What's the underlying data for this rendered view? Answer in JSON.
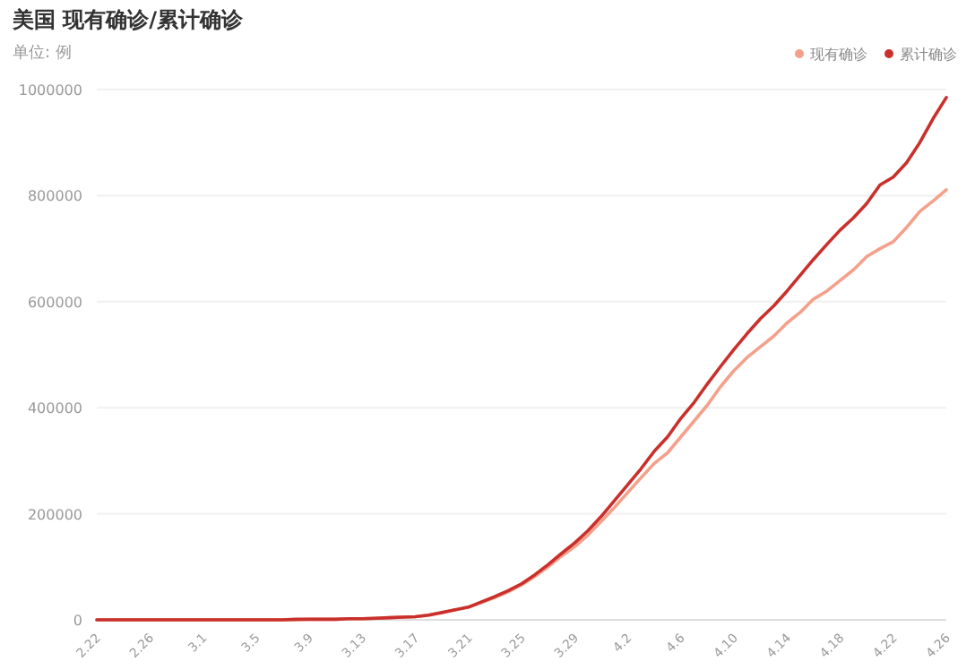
{
  "chart_data": {
    "type": "line",
    "title": "美国 现有确诊/累计确诊",
    "subtitle": "单位: 例",
    "categories": [
      "2.22",
      null,
      null,
      null,
      "2.26",
      null,
      null,
      null,
      "3.1",
      null,
      null,
      null,
      "3.5",
      null,
      null,
      null,
      "3.9",
      null,
      null,
      null,
      "3.13",
      null,
      null,
      null,
      "3.17",
      null,
      null,
      null,
      "3.21",
      null,
      null,
      null,
      "3.25",
      null,
      null,
      null,
      "3.29",
      null,
      null,
      null,
      "4.2",
      null,
      null,
      null,
      "4.6",
      null,
      null,
      null,
      "4.10",
      null,
      null,
      null,
      "4.14",
      null,
      null,
      null,
      "4.18",
      null,
      null,
      null,
      "4.22",
      null,
      null,
      null,
      "4.26"
    ],
    "series": [
      {
        "name": "现有确诊",
        "color": "#f4a08a",
        "values": [
          0,
          0,
          0,
          0,
          0,
          0,
          0,
          0,
          0,
          0,
          0,
          0,
          0,
          0,
          0,
          0,
          1000,
          1000,
          1000,
          2000,
          2000,
          3000,
          4000,
          5000,
          6000,
          9000,
          13000,
          19000,
          24000,
          33000,
          42000,
          53000,
          66000,
          82000,
          100000,
          120000,
          138000,
          160000,
          186000,
          212000,
          240000,
          268000,
          295000,
          315000,
          345000,
          375000,
          405000,
          440000,
          470000,
          495000,
          515000,
          535000,
          560000,
          580000,
          605000,
          620000,
          640000,
          660000,
          685000,
          700000,
          713000,
          740000,
          770000,
          790000,
          811000
        ]
      },
      {
        "name": "累计确诊",
        "color": "#c9302c",
        "values": [
          0,
          0,
          0,
          0,
          0,
          0,
          0,
          0,
          0,
          0,
          0,
          0,
          0,
          0,
          0,
          1000,
          1000,
          1000,
          1000,
          2000,
          2000,
          3000,
          4000,
          5000,
          6000,
          9000,
          14000,
          19000,
          24000,
          34000,
          44000,
          55000,
          68000,
          85000,
          104000,
          125000,
          145000,
          168000,
          195000,
          225000,
          255000,
          285000,
          318000,
          345000,
          380000,
          410000,
          445000,
          478000,
          510000,
          540000,
          568000,
          592000,
          620000,
          650000,
          680000,
          708000,
          735000,
          758000,
          785000,
          820000,
          835000,
          862000,
          900000,
          945000,
          985000
        ]
      }
    ],
    "ylim": [
      0,
      1000000
    ],
    "yticks": [
      0,
      200000,
      400000,
      600000,
      800000,
      1000000
    ],
    "grid": "y",
    "legend": "top right",
    "marker": "none",
    "line_style": "solid"
  }
}
